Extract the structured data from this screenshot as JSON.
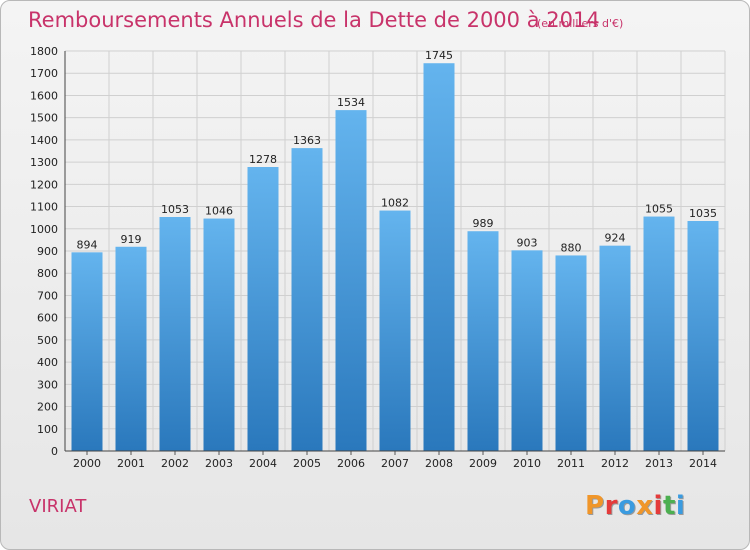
{
  "header": {
    "title": "Remboursements Annuels de la Dette de 2000 à 2014",
    "unit": "(en milliers d'€)"
  },
  "footer": {
    "commune": "VIRIAT",
    "logo": "Proxiti",
    "logo_colors": [
      "#f0962a",
      "#e43b3b",
      "#3a9be0",
      "#f0962a",
      "#e43b3b",
      "#4caf50",
      "#3a9be0"
    ]
  },
  "colors": {
    "accent": "#c8336a",
    "bar_top": "#64b4ee",
    "bar_bottom": "#2a78bc",
    "grid": "#d0d0d0"
  },
  "chart_data": {
    "type": "bar",
    "title": "Remboursements Annuels de la Dette de 2000 à 2014",
    "xlabel": "",
    "ylabel": "",
    "categories": [
      "2000",
      "2001",
      "2002",
      "2003",
      "2004",
      "2005",
      "2006",
      "2007",
      "2008",
      "2009",
      "2010",
      "2011",
      "2012",
      "2013",
      "2014"
    ],
    "values": [
      894,
      919,
      1053,
      1046,
      1278,
      1363,
      1534,
      1082,
      1745,
      989,
      903,
      880,
      924,
      1055,
      1035
    ],
    "ylim": [
      0,
      1800
    ],
    "yticks": [
      0,
      100,
      200,
      300,
      400,
      500,
      600,
      700,
      800,
      900,
      1000,
      1100,
      1200,
      1300,
      1400,
      1500,
      1600,
      1700,
      1800
    ],
    "grid": true,
    "legend": "none"
  }
}
